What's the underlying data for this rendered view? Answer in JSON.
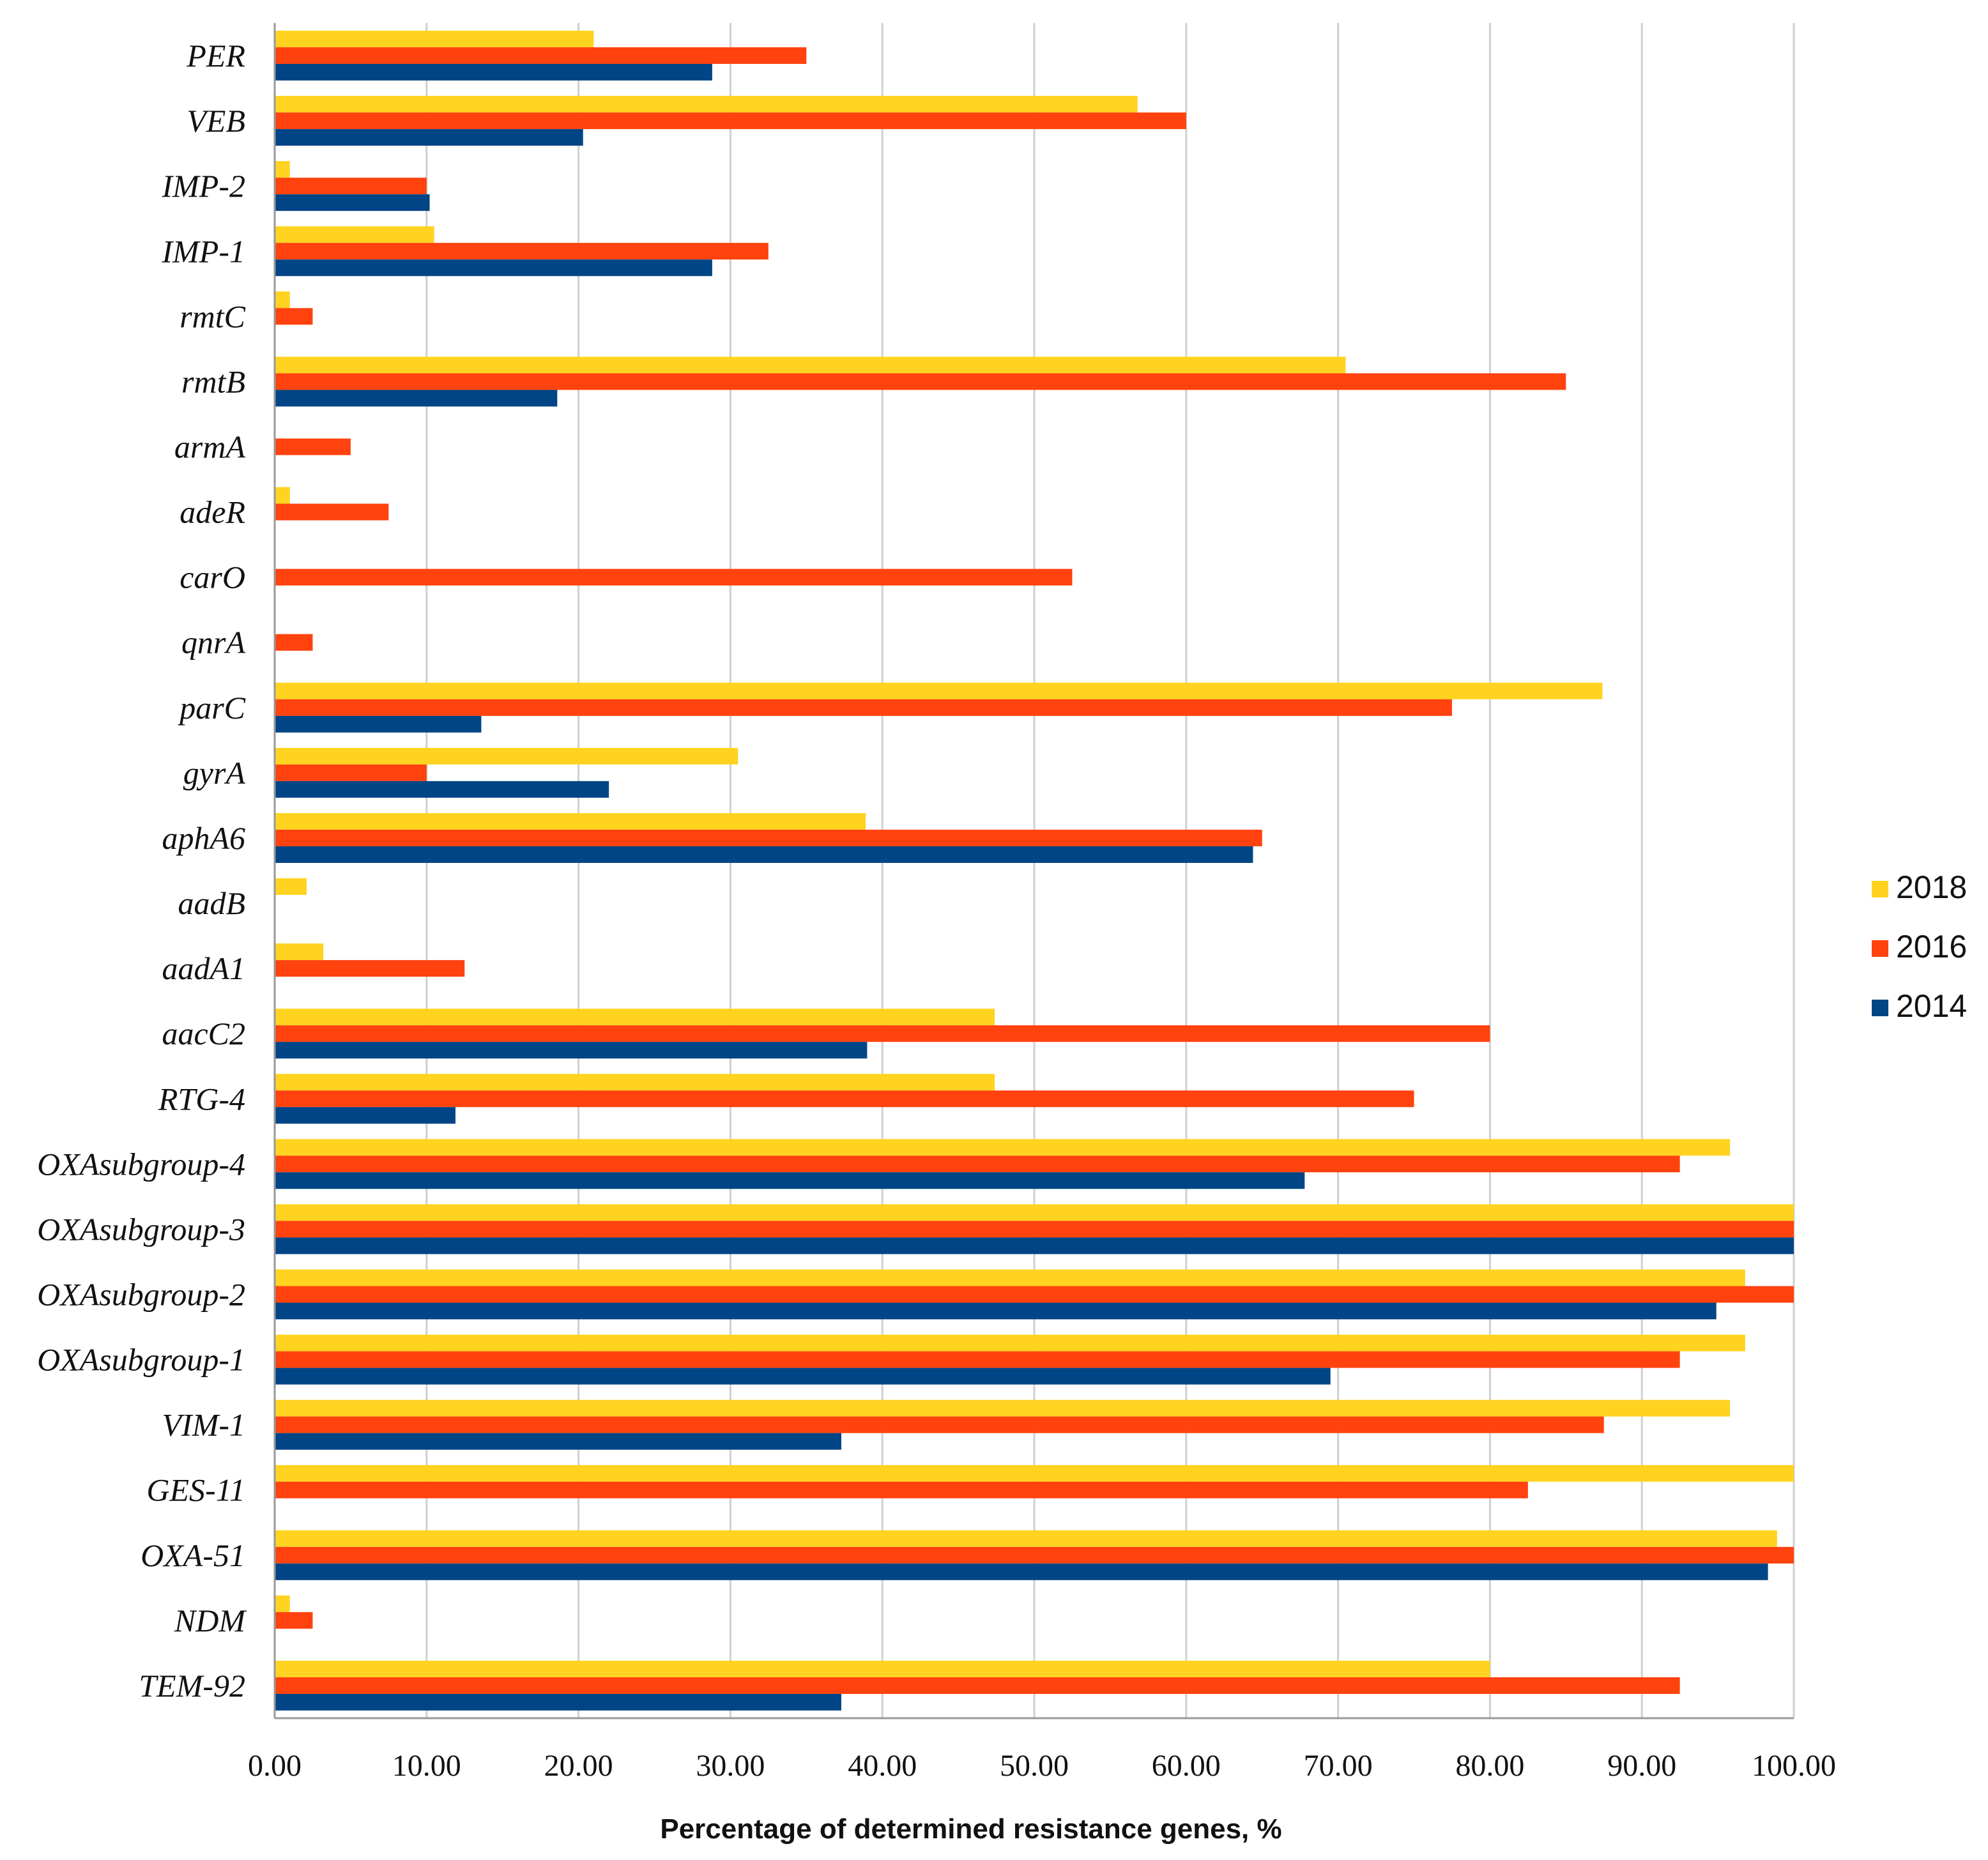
{
  "chart_data": {
    "type": "bar",
    "orientation": "horizontal",
    "title": "",
    "xlabel": "Percentage of determined resistance genes, %",
    "ylabel": "",
    "xlim": [
      0,
      100
    ],
    "xticks": [
      "0.00",
      "10.00",
      "20.00",
      "30.00",
      "40.00",
      "50.00",
      "60.00",
      "70.00",
      "80.00",
      "90.00",
      "100.00"
    ],
    "grid": "vertical",
    "legend_position": "right",
    "categories": [
      "PER",
      "VEB",
      "IMP-2",
      "IMP-1",
      "rmtC",
      "rmtB",
      "armA",
      "adeR",
      "carO",
      "qnrA",
      "parC",
      "gyrA",
      "aphA6",
      "aadB",
      "aadA1",
      "aacC2",
      "RTG-4",
      "OXAsubgroup-4",
      "OXAsubgroup-3",
      "OXAsubgroup-2",
      "OXAsubgroup-1",
      "VIM-1",
      "GES-11",
      "OXA-51",
      "NDM",
      "TEM-92"
    ],
    "series": [
      {
        "name": "2018",
        "color": "#FFD320",
        "values": [
          21,
          56.8,
          1,
          10.5,
          1,
          70.5,
          0,
          1,
          0,
          0,
          87.4,
          30.5,
          38.9,
          2.1,
          3.2,
          47.4,
          47.4,
          95.8,
          100,
          96.8,
          96.8,
          95.8,
          100,
          98.9,
          1,
          80
        ]
      },
      {
        "name": "2016",
        "color": "#FF420E",
        "values": [
          35,
          60,
          10,
          32.5,
          2.5,
          85,
          5,
          7.5,
          52.5,
          2.5,
          77.5,
          10,
          65,
          0,
          12.5,
          80,
          75,
          92.5,
          100,
          100,
          92.5,
          87.5,
          82.5,
          100,
          2.5,
          92.5
        ]
      },
      {
        "name": "2014",
        "color": "#004586",
        "values": [
          28.8,
          20.3,
          10.2,
          28.8,
          0,
          18.6,
          0,
          0,
          0,
          0,
          13.6,
          22,
          64.4,
          0,
          0,
          39,
          11.9,
          67.8,
          100,
          94.9,
          69.5,
          37.3,
          0,
          98.3,
          0,
          37.3
        ]
      }
    ]
  }
}
